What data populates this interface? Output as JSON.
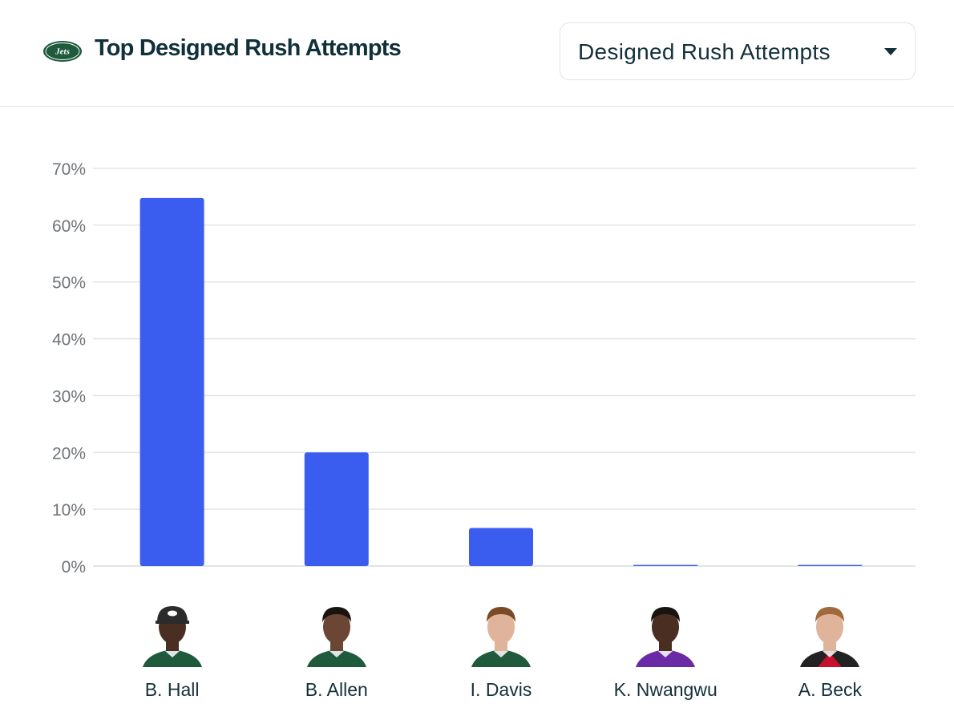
{
  "header": {
    "title": "Top Designed Rush Attempts",
    "logo_text": "Jets",
    "dropdown_value": "Designed Rush Attempts"
  },
  "colors": {
    "bar": "#3a5df0",
    "jets_green": "#1f5a3c",
    "vikings_purple": "#6a2aa5",
    "falcons_red": "#c8102e"
  },
  "chart_data": {
    "type": "bar",
    "title": "Top Designed Rush Attempts",
    "categories": [
      "B. Hall",
      "B. Allen",
      "I. Davis",
      "K. Nwangwu",
      "A. Beck"
    ],
    "values": [
      64.8,
      20.0,
      6.7,
      0.0,
      0.0
    ],
    "unit": "%",
    "ylim": [
      0,
      70
    ],
    "yticks": [
      "0%",
      "10%",
      "20%",
      "30%",
      "40%",
      "50%",
      "60%",
      "70%"
    ],
    "grid": true,
    "xlabel": "",
    "ylabel": ""
  },
  "players": [
    {
      "name": "B. Hall",
      "icon": "jets-headshot"
    },
    {
      "name": "B. Allen",
      "icon": "jets-headshot"
    },
    {
      "name": "I. Davis",
      "icon": "jets-headshot"
    },
    {
      "name": "K. Nwangwu",
      "icon": "vikings-headshot"
    },
    {
      "name": "A. Beck",
      "icon": "falcons-headshot"
    }
  ]
}
